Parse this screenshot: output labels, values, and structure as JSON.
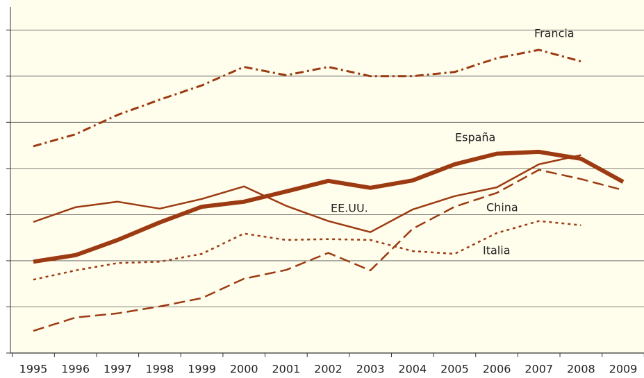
{
  "chart_data": {
    "type": "line",
    "categories": [
      "1995",
      "1996",
      "1997",
      "1998",
      "1999",
      "2000",
      "2001",
      "2002",
      "2003",
      "2004",
      "2005",
      "2006",
      "2007",
      "2008",
      "2009"
    ],
    "ylim": [
      0,
      7.5
    ],
    "yticks": [
      0,
      1,
      2,
      3,
      4,
      5,
      6,
      7
    ],
    "grid": true,
    "series": [
      {
        "name": "Francia",
        "color": "#9c3a12",
        "dash": "12,5,3,5",
        "width": 3,
        "values": [
          4.48,
          4.74,
          5.16,
          5.49,
          5.8,
          6.2,
          6.02,
          6.2,
          6.0,
          6.0,
          6.09,
          6.39,
          6.57,
          6.32,
          null
        ]
      },
      {
        "name": "España",
        "color": "#9c3a12",
        "dash": "none",
        "width": 6,
        "values": [
          1.98,
          2.12,
          2.45,
          2.83,
          3.17,
          3.28,
          3.5,
          3.73,
          3.58,
          3.74,
          4.09,
          4.32,
          4.36,
          4.21,
          3.71
        ]
      },
      {
        "name": "EE.UU.",
        "color": "#9c3a12",
        "dash": "none",
        "width": 2.5,
        "values": [
          2.84,
          3.16,
          3.28,
          3.13,
          3.34,
          3.61,
          3.19,
          2.86,
          2.62,
          3.11,
          3.4,
          3.59,
          4.09,
          4.29,
          null
        ]
      },
      {
        "name": "China",
        "color": "#9c3a12",
        "dash": "16,7",
        "width": 2.5,
        "values": [
          0.48,
          0.77,
          0.86,
          1.01,
          1.19,
          1.61,
          1.8,
          2.17,
          1.79,
          2.69,
          3.17,
          3.47,
          3.97,
          3.77,
          3.53
        ]
      },
      {
        "name": "Italia",
        "color": "#9c3a12",
        "dash": "4,5",
        "width": 2.5,
        "values": [
          1.59,
          1.79,
          1.95,
          1.98,
          2.15,
          2.59,
          2.45,
          2.47,
          2.45,
          2.21,
          2.15,
          2.6,
          2.86,
          2.77,
          null
        ]
      }
    ]
  }
}
